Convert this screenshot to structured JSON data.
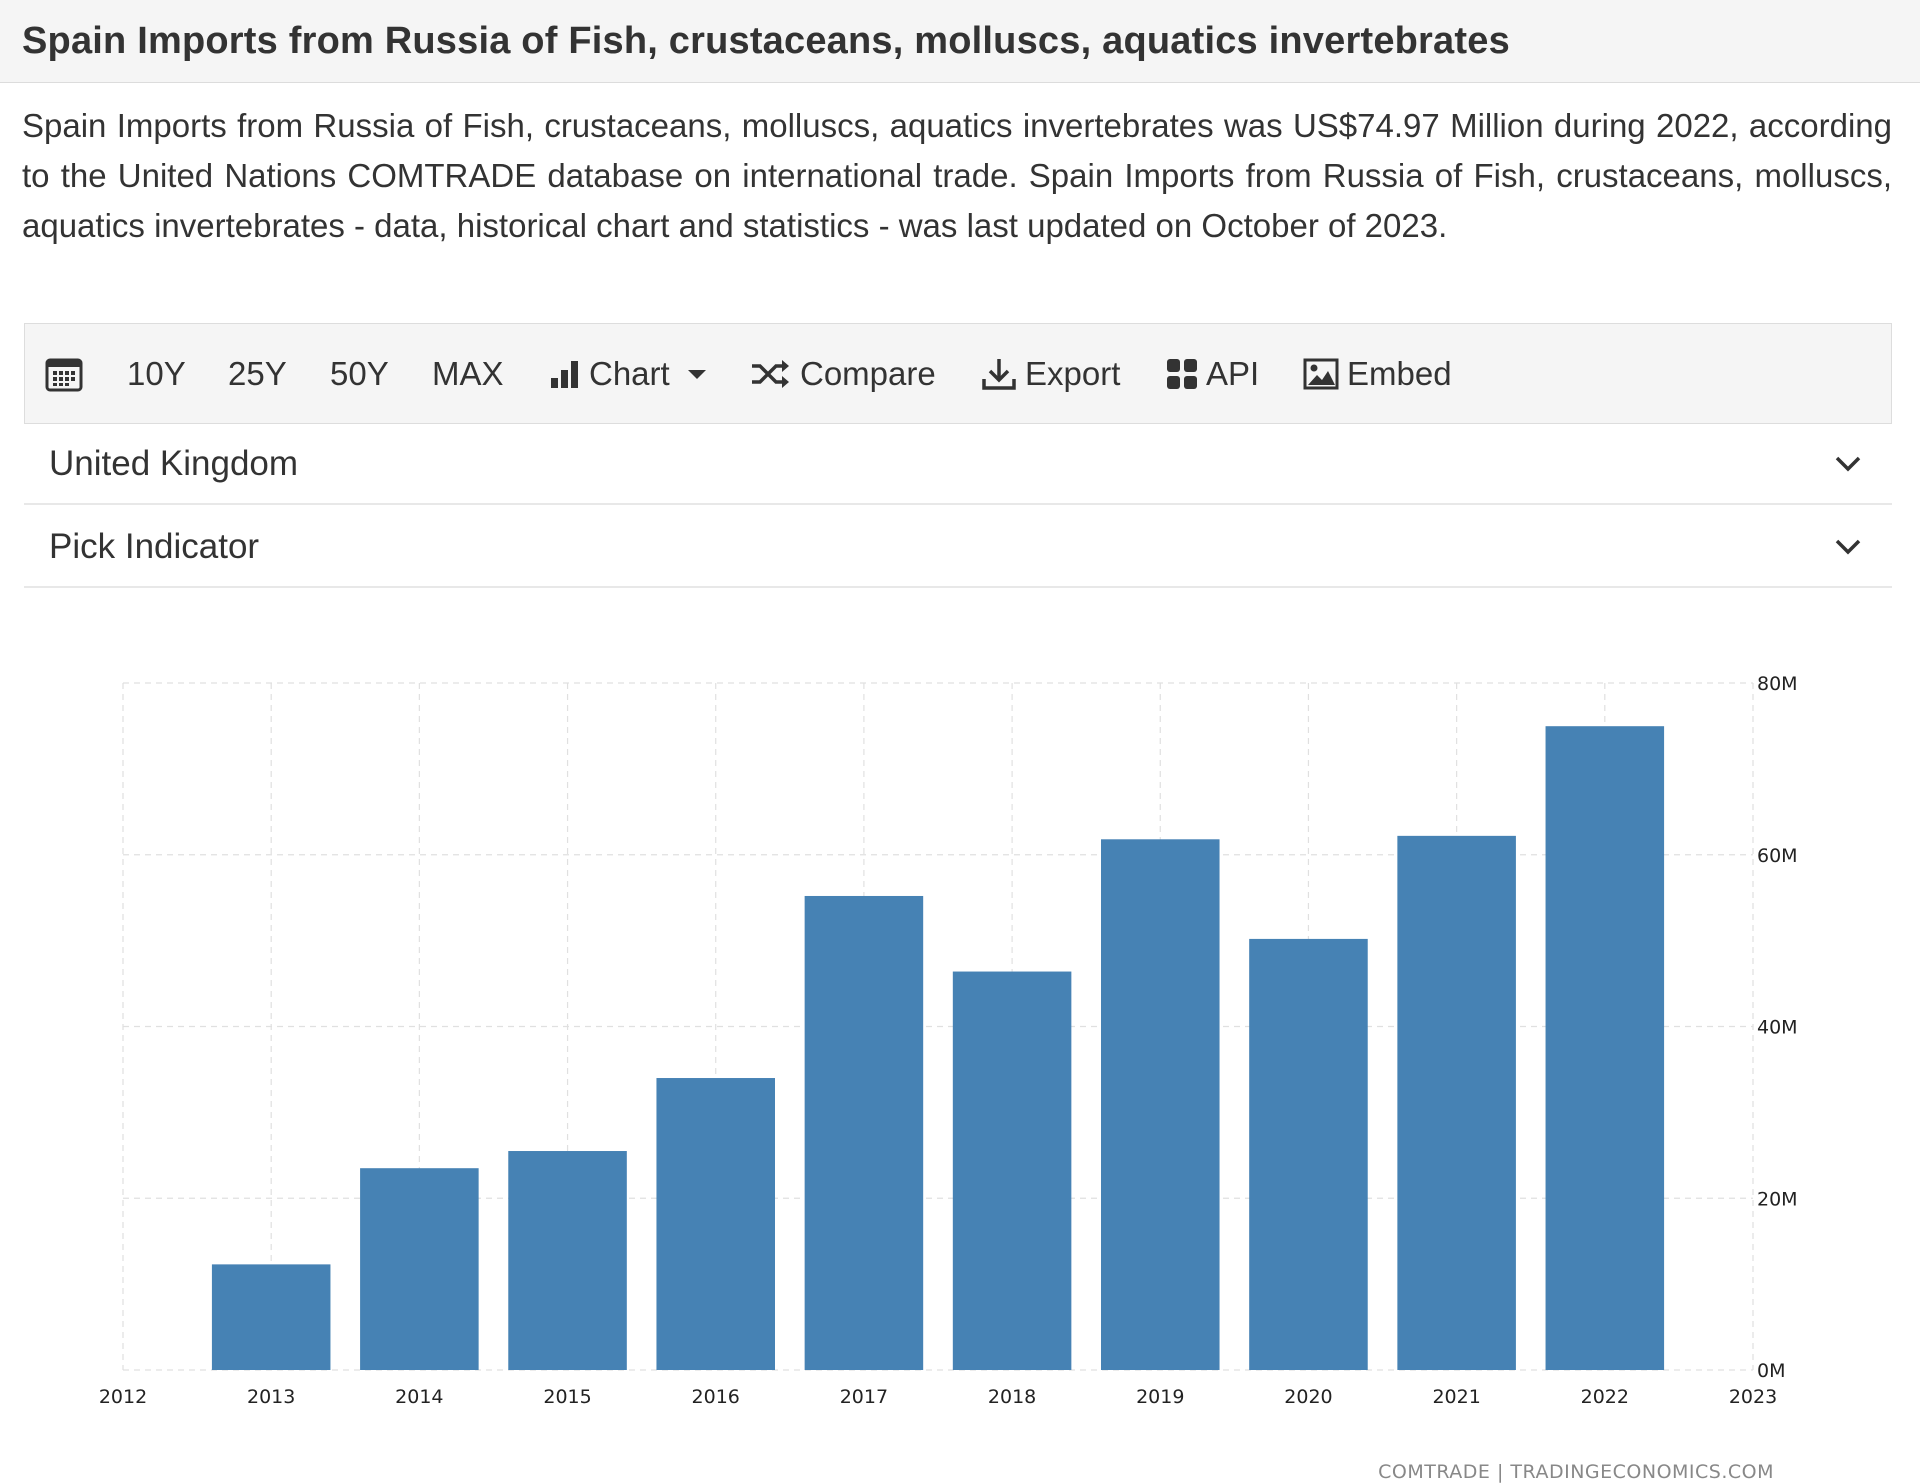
{
  "page": {
    "title": "Spain Imports from Russia of Fish, crustaceans, molluscs, aquatics invertebrates",
    "description": "Spain Imports from Russia of Fish, crustaceans, molluscs, aquatics invertebrates was US$74.97 Million during 2022, according to the United Nations COMTRADE database on international trade. Spain Imports from Russia of Fish, crustaceans, molluscs, aquatics invertebrates - data, historical chart and statistics - was last updated on October of 2023."
  },
  "toolbar": {
    "calendar_icon": "calendar-icon",
    "range_10y": "10Y",
    "range_25y": "25Y",
    "range_50y": "50Y",
    "range_max": "MAX",
    "chart_label": "Chart",
    "compare_label": "Compare",
    "export_label": "Export",
    "api_label": "API",
    "embed_label": "Embed"
  },
  "selectors": {
    "country": "United Kingdom",
    "indicator": "Pick Indicator"
  },
  "colors": {
    "bar": "#4682b4",
    "grid": "#e0e0e0"
  },
  "chart_data": {
    "type": "bar",
    "x_ticks": [
      "2012",
      "2013",
      "2014",
      "2015",
      "2016",
      "2017",
      "2018",
      "2019",
      "2020",
      "2021",
      "2022",
      "2023"
    ],
    "categories": [
      "2013",
      "2014",
      "2015",
      "2016",
      "2017",
      "2018",
      "2019",
      "2020",
      "2021",
      "2022"
    ],
    "values": [
      12.3,
      23.5,
      25.5,
      34.0,
      55.2,
      46.4,
      61.8,
      50.2,
      62.2,
      74.97
    ],
    "unit": "M",
    "y_ticks": [
      "0M",
      "20M",
      "40M",
      "60M",
      "80M"
    ],
    "ylim": [
      0,
      80
    ],
    "y_axis_position": "right",
    "grid": true,
    "legend": false,
    "source": "COMTRADE | TRADINGECONOMICS.COM"
  }
}
